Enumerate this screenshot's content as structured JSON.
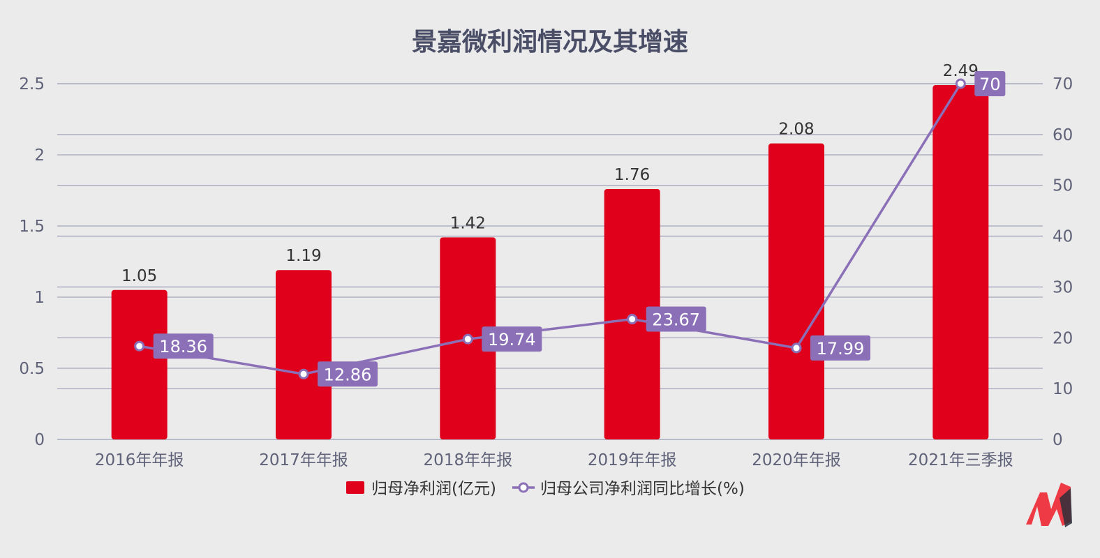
{
  "chart_data": {
    "type": "bar",
    "title": "景嘉微利润情况及其增速",
    "categories": [
      "2016年年报",
      "2017年年报",
      "2018年年报",
      "2019年年报",
      "2020年年报",
      "2021年三季报"
    ],
    "series": [
      {
        "name": "归母净利润(亿元)",
        "type": "bar",
        "axis": "left",
        "color": "#e0001b",
        "values": [
          1.05,
          1.19,
          1.42,
          1.76,
          2.08,
          2.49
        ],
        "labels": [
          "1.05",
          "1.19",
          "1.42",
          "1.76",
          "2.08",
          "2.49"
        ]
      },
      {
        "name": "归母公司净利润同比增长(%)",
        "type": "line",
        "axis": "right",
        "color": "#8b70b8",
        "values": [
          18.36,
          12.86,
          19.74,
          23.67,
          17.99,
          70
        ],
        "labels": [
          "18.36",
          "12.86",
          "19.74",
          "23.67",
          "17.99",
          "70"
        ]
      }
    ],
    "y_left": {
      "ylim": [
        0,
        2.5
      ],
      "ticks": [
        "0",
        "0.5",
        "1",
        "1.5",
        "2",
        "2.5"
      ]
    },
    "y_right": {
      "ylim": [
        0,
        70
      ],
      "ticks": [
        "0",
        "10",
        "20",
        "30",
        "40",
        "50",
        "60",
        "70"
      ]
    },
    "grid": true,
    "legend": "bottom"
  },
  "colors": {
    "background": "#ebebeb",
    "grid": "#a3a6ba",
    "axis_text": "#5f6278",
    "logo_red": "#ee3a45",
    "logo_dark": "#2c2f3a"
  },
  "logo": {
    "icon": "brand-logo-icon"
  }
}
